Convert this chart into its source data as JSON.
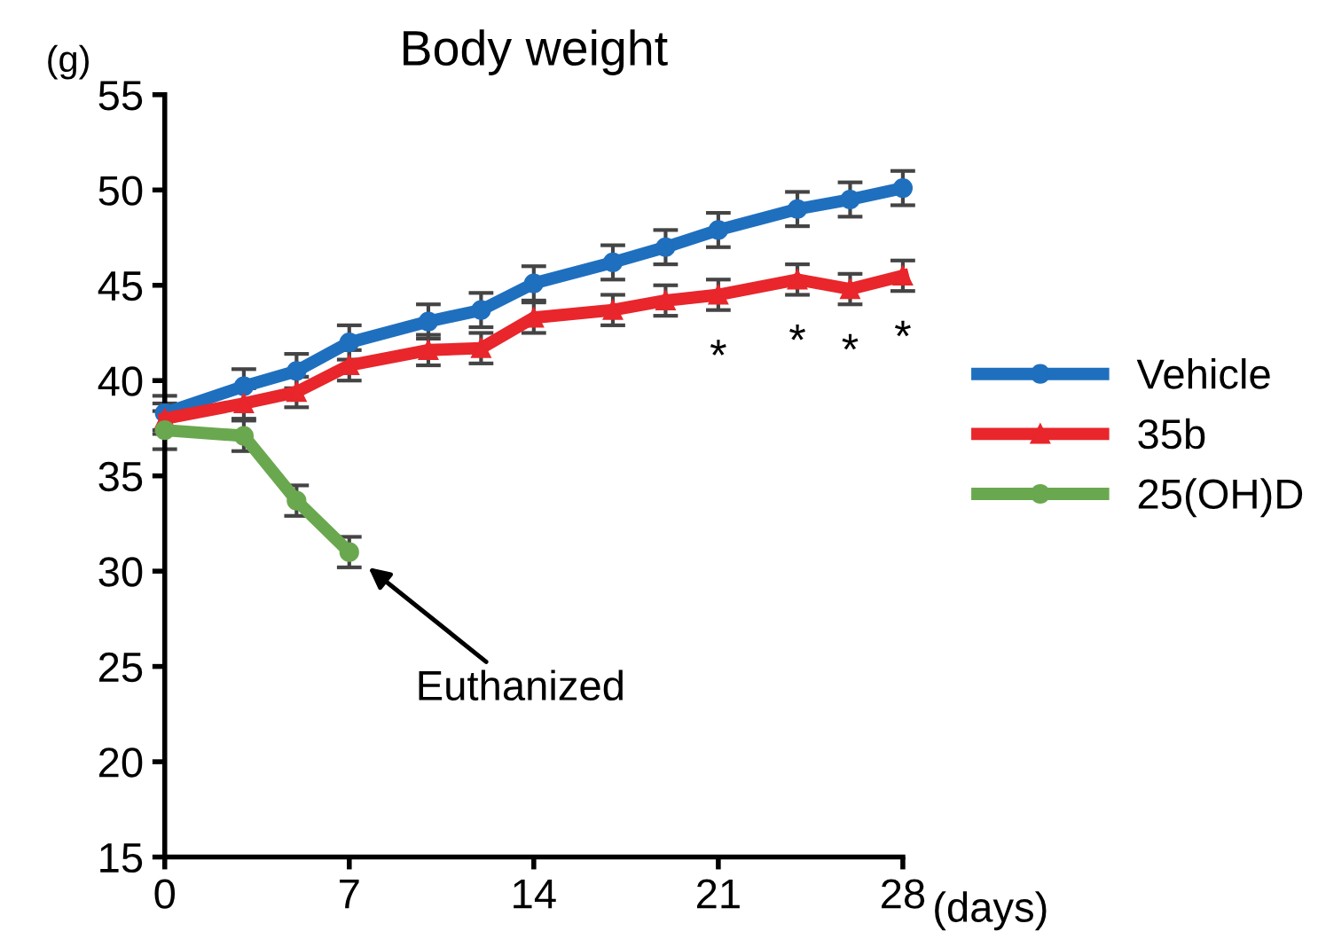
{
  "chart_data": {
    "type": "line",
    "title": "Body weight",
    "ylabel": "(g)",
    "xlabel": "(days)",
    "xlim": [
      0,
      28
    ],
    "xticks": [
      0,
      7,
      14,
      21,
      28
    ],
    "ylim": [
      15,
      55
    ],
    "yticks": [
      15,
      20,
      25,
      30,
      35,
      40,
      45,
      50,
      55
    ],
    "grid": false,
    "legend": "right",
    "line_style": "solid",
    "series": [
      {
        "name": "Vehicle",
        "color": "#1f6fbf",
        "marker": "circle",
        "x": [
          0,
          3,
          5,
          7,
          10,
          12,
          14,
          17,
          19,
          21,
          24,
          26,
          28
        ],
        "values": [
          38.3,
          39.7,
          40.5,
          42.0,
          43.1,
          43.7,
          45.1,
          46.2,
          47.0,
          47.9,
          49.0,
          49.5,
          50.1
        ],
        "errors": [
          0.9,
          0.9,
          0.9,
          0.9,
          0.9,
          0.9,
          0.9,
          0.9,
          0.9,
          0.9,
          0.9,
          0.9,
          0.9
        ]
      },
      {
        "name": "35b",
        "color": "#e8262b",
        "marker": "triangle",
        "x": [
          0,
          3,
          5,
          7,
          10,
          12,
          14,
          17,
          19,
          21,
          24,
          26,
          28
        ],
        "values": [
          38.0,
          38.8,
          39.4,
          40.8,
          41.6,
          41.7,
          43.3,
          43.7,
          44.2,
          44.5,
          45.3,
          44.8,
          45.5
        ],
        "errors": [
          0.8,
          0.8,
          0.8,
          0.8,
          0.8,
          0.8,
          0.8,
          0.8,
          0.8,
          0.8,
          0.8,
          0.8,
          0.8
        ]
      },
      {
        "name": "25(OH)D",
        "color": "#6aa84f",
        "marker": "circle",
        "x": [
          0,
          3,
          5,
          7
        ],
        "values": [
          37.4,
          37.1,
          33.7,
          31.0
        ],
        "errors": [
          1.0,
          0.8,
          0.8,
          0.8
        ]
      }
    ],
    "annotations": [
      {
        "text": "*",
        "x": 21,
        "y": 44.5
      },
      {
        "text": "*",
        "x": 24,
        "y": 45.3
      },
      {
        "text": "*",
        "x": 26,
        "y": 44.8
      },
      {
        "text": "*",
        "x": 28,
        "y": 45.5
      },
      "Euthanized"
    ]
  }
}
